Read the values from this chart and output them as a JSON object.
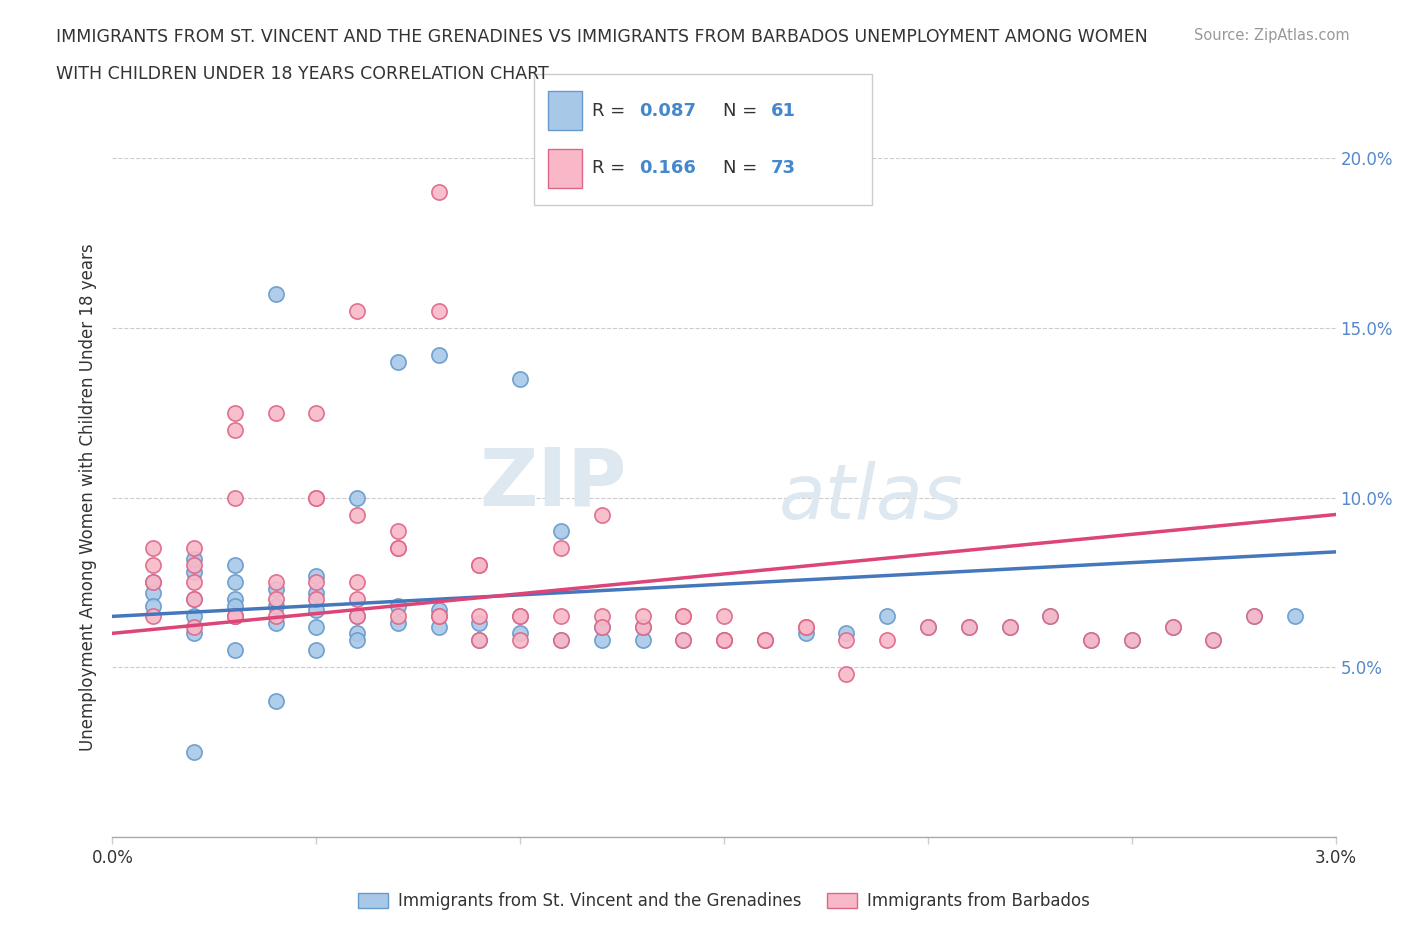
{
  "title_line1": "IMMIGRANTS FROM ST. VINCENT AND THE GRENADINES VS IMMIGRANTS FROM BARBADOS UNEMPLOYMENT AMONG WOMEN",
  "title_line2": "WITH CHILDREN UNDER 18 YEARS CORRELATION CHART",
  "source": "Source: ZipAtlas.com",
  "ylabel": "Unemployment Among Women with Children Under 18 years",
  "xlim": [
    0.0,
    0.03
  ],
  "ylim": [
    0.0,
    0.2
  ],
  "blue_color": "#a8c8e8",
  "blue_edge_color": "#6699cc",
  "pink_color": "#f8b8c8",
  "pink_edge_color": "#dd6688",
  "blue_line_color": "#4477bb",
  "pink_line_color": "#dd4477",
  "right_tick_color": "#5588cc",
  "legend_blue_label": "Immigrants from St. Vincent and the Grenadines",
  "legend_pink_label": "Immigrants from Barbados",
  "R_blue": 0.087,
  "N_blue": 61,
  "R_pink": 0.166,
  "N_pink": 73,
  "watermark_ZIP": "ZIP",
  "watermark_atlas": "atlas",
  "blue_trend_y0": 0.065,
  "blue_trend_y1": 0.084,
  "pink_trend_y0": 0.06,
  "pink_trend_y1": 0.095
}
